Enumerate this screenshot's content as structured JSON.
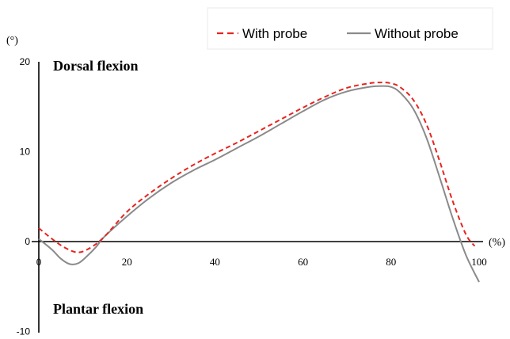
{
  "chart_data": {
    "type": "line",
    "y_unit_label": "(°)",
    "x_unit_label": "(%)",
    "xlim": [
      0,
      100
    ],
    "ylim": [
      -10,
      20
    ],
    "x_ticks": [
      "0",
      "20",
      "40",
      "60",
      "80",
      "100"
    ],
    "y_ticks": [
      "20",
      "10",
      "0",
      "-10"
    ],
    "annotations": {
      "top": "Dorsal flexion",
      "bottom": "Plantar flexion"
    },
    "legend": {
      "position": "top-right",
      "entries": [
        "With probe",
        "Without probe"
      ]
    },
    "series": [
      {
        "name": "With probe",
        "color": "#e8231f",
        "dash": true,
        "x": [
          0,
          3,
          6,
          9,
          12,
          15,
          20,
          25,
          30,
          35,
          40,
          45,
          50,
          55,
          60,
          65,
          70,
          75,
          78,
          80,
          82,
          85,
          88,
          91,
          94,
          97,
          99
        ],
        "y": [
          1.5,
          0.3,
          -0.7,
          -1.2,
          -0.6,
          0.6,
          3.3,
          5.3,
          7.0,
          8.5,
          9.8,
          11.0,
          12.3,
          13.6,
          14.9,
          16.1,
          17.1,
          17.6,
          17.7,
          17.6,
          17.2,
          15.8,
          13.1,
          9.0,
          4.5,
          0.8,
          -0.5
        ]
      },
      {
        "name": "Without probe",
        "color": "#8a8a8a",
        "dash": false,
        "x": [
          0,
          3,
          5,
          7,
          9,
          11,
          13,
          15,
          20,
          25,
          30,
          35,
          40,
          45,
          50,
          55,
          60,
          65,
          70,
          75,
          78,
          80,
          82,
          85,
          88,
          91,
          94,
          97,
          100
        ],
        "y": [
          0.3,
          -0.9,
          -1.9,
          -2.5,
          -2.4,
          -1.6,
          -0.6,
          0.6,
          2.8,
          4.8,
          6.5,
          7.9,
          9.1,
          10.4,
          11.7,
          13.1,
          14.5,
          15.8,
          16.7,
          17.2,
          17.3,
          17.2,
          16.6,
          14.8,
          11.6,
          7.2,
          2.6,
          -1.5,
          -4.5
        ]
      }
    ]
  }
}
